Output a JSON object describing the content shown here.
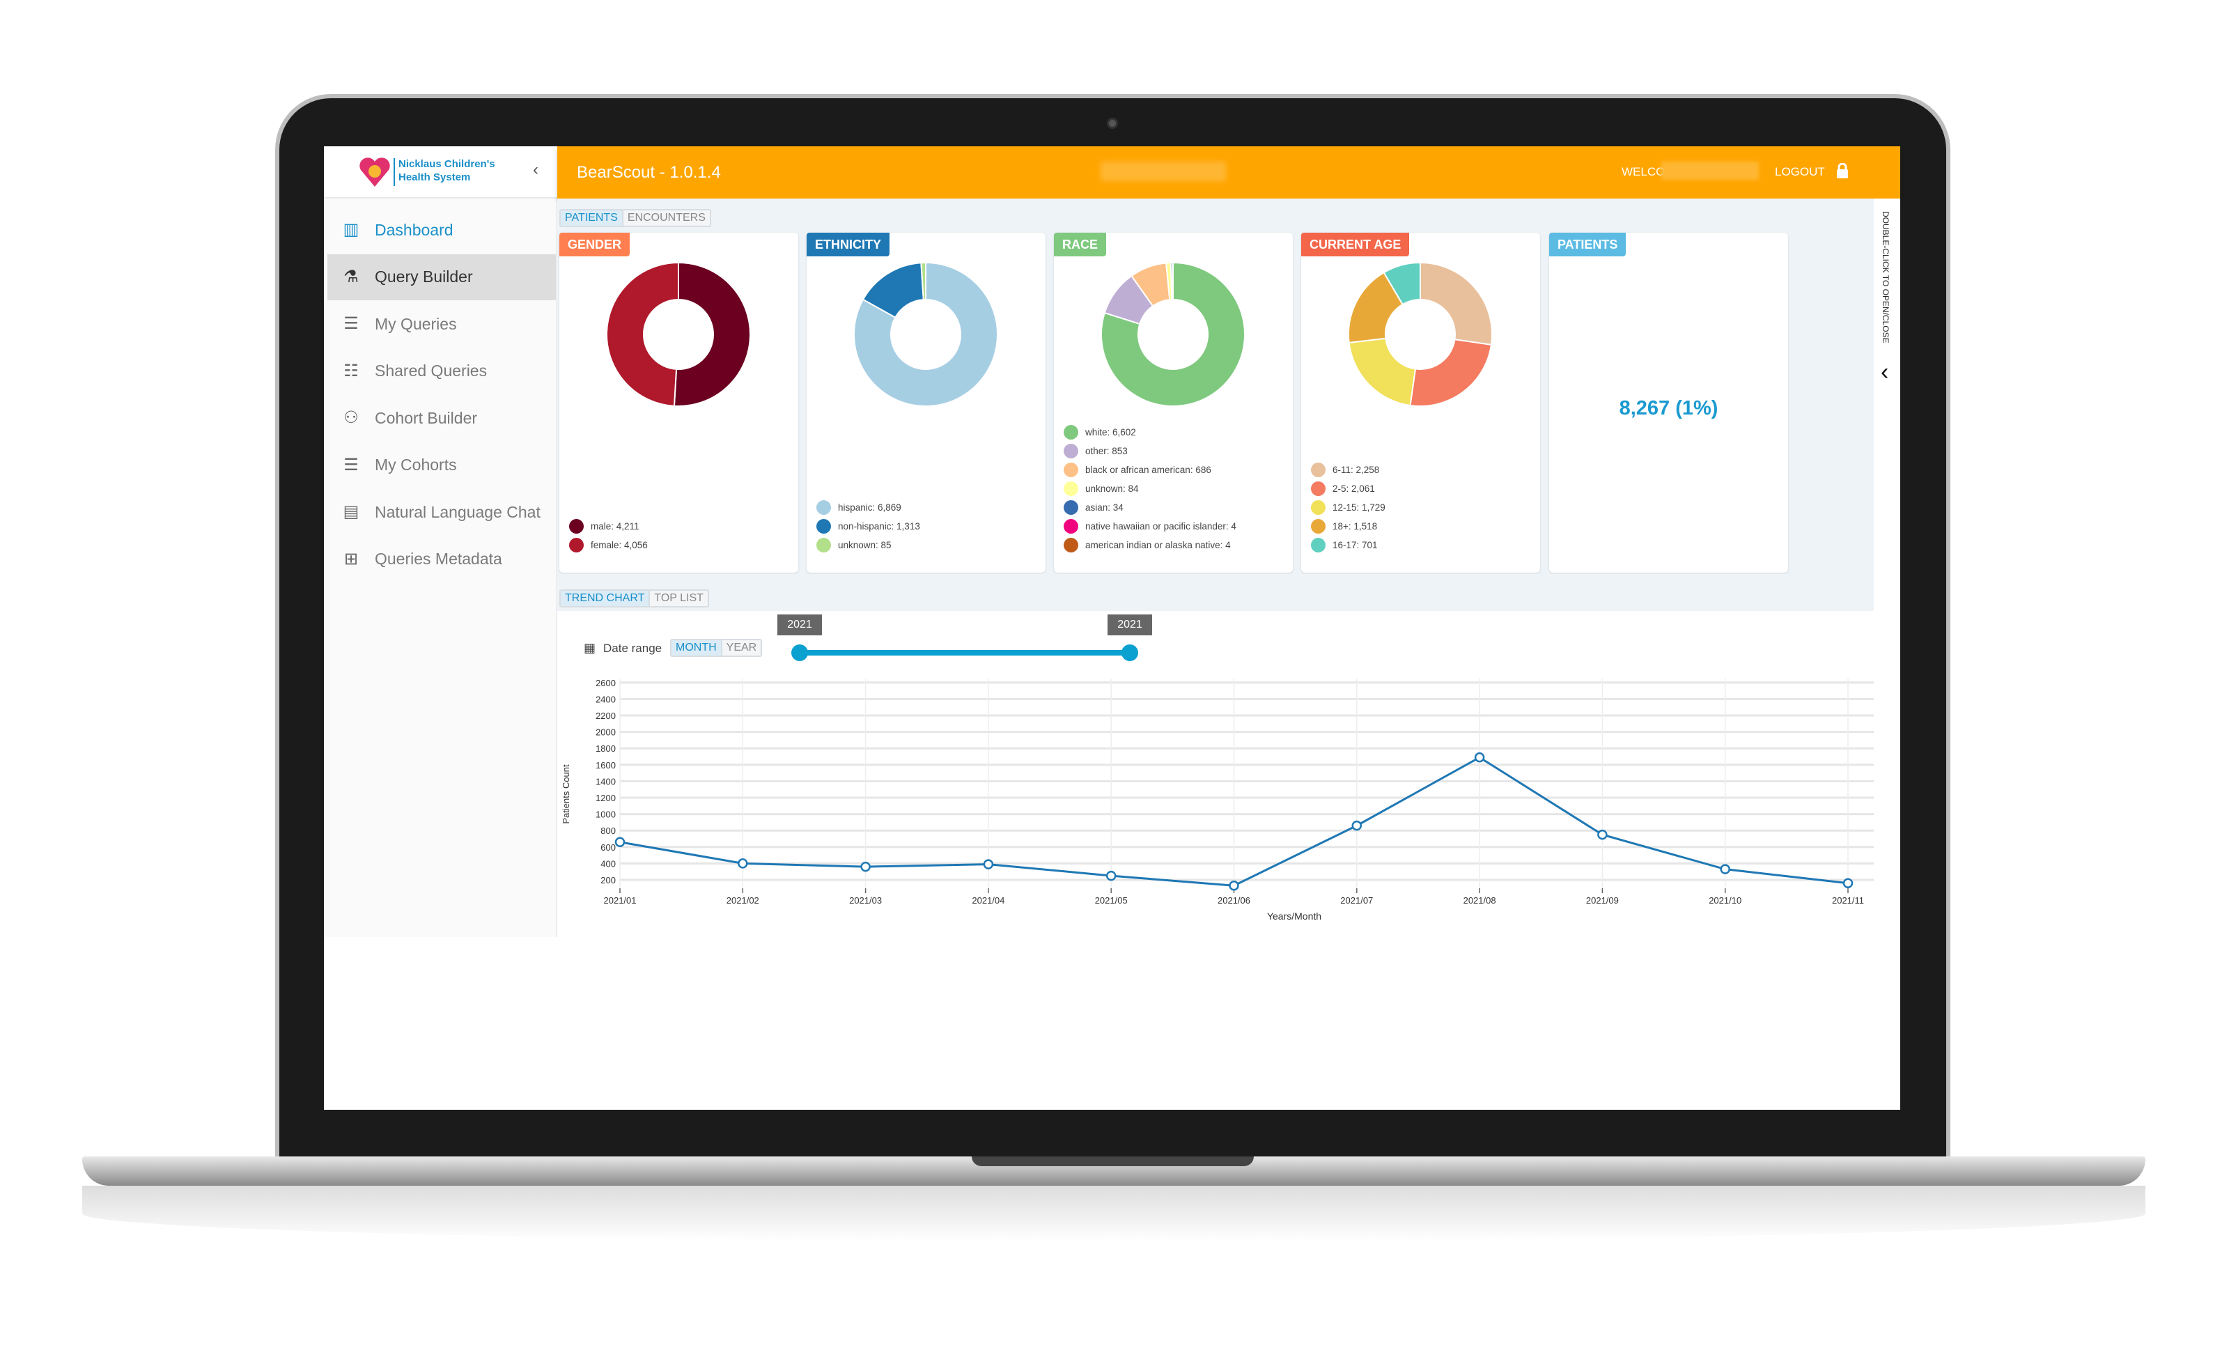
{
  "app": {
    "title": "BearScout - 1.0.1.4",
    "welcome": "WELCOME",
    "logout": "LOGOUT",
    "brand_line1": "Nicklaus Children's",
    "brand_line2": "Health System",
    "side_hint": "DOUBLE-CLICK TO OPEN/CLOSE"
  },
  "sidebar": {
    "items": [
      {
        "label": "Dashboard",
        "icon": "bar-chart-icon",
        "glyph": "▥"
      },
      {
        "label": "Query Builder",
        "icon": "flask-icon",
        "glyph": "⚗"
      },
      {
        "label": "My Queries",
        "icon": "query-list-icon",
        "glyph": "☰"
      },
      {
        "label": "Shared Queries",
        "icon": "shared-query-icon",
        "glyph": "☷"
      },
      {
        "label": "Cohort Builder",
        "icon": "group-icon",
        "glyph": "⚇"
      },
      {
        "label": "My Cohorts",
        "icon": "cohort-list-icon",
        "glyph": "☰"
      },
      {
        "label": "Natural Language Chat",
        "icon": "chat-icon",
        "glyph": "▤"
      },
      {
        "label": "Queries Metadata",
        "icon": "hierarchy-icon",
        "glyph": "⊞"
      }
    ]
  },
  "tabs": {
    "top": [
      "PATIENTS",
      "ENCOUNTERS"
    ],
    "trend": [
      "TREND CHART",
      "TOP LIST"
    ],
    "range": [
      "MONTH",
      "YEAR"
    ],
    "date_range": "Date range",
    "slider_from": "2021",
    "slider_to": "2021"
  },
  "cards": [
    {
      "title": "GENDER",
      "color": "#ff7f50",
      "slices": [
        {
          "label": "male: 4,211",
          "value": 4211,
          "color": "#6b0020"
        },
        {
          "label": "female: 4,056",
          "value": 4056,
          "color": "#b0182b"
        }
      ]
    },
    {
      "title": "ETHNICITY",
      "color": "#1f78b4",
      "slices": [
        {
          "label": "hispanic: 6,869",
          "value": 6869,
          "color": "#a6cee3"
        },
        {
          "label": "non-hispanic: 1,313",
          "value": 1313,
          "color": "#1f78b4"
        },
        {
          "label": "unknown: 85",
          "value": 85,
          "color": "#b2df8a"
        }
      ]
    },
    {
      "title": "RACE",
      "color": "#7fc97f",
      "slices": [
        {
          "label": "white: 6,602",
          "value": 6602,
          "color": "#7fc97f"
        },
        {
          "label": "other: 853",
          "value": 853,
          "color": "#beaed4"
        },
        {
          "label": "black or african american: 686",
          "value": 686,
          "color": "#fdc086"
        },
        {
          "label": "unknown: 84",
          "value": 84,
          "color": "#ffff99"
        },
        {
          "label": "asian: 34",
          "value": 34,
          "color": "#386cb0"
        },
        {
          "label": "native hawaiian or pacific islander: 4",
          "value": 4,
          "color": "#f0027f"
        },
        {
          "label": "american indian or alaska native: 4",
          "value": 4,
          "color": "#bf5b17"
        }
      ]
    },
    {
      "title": "CURRENT AGE",
      "color": "#f4664a",
      "slices": [
        {
          "label": "6-11: 2,258",
          "value": 2258,
          "color": "#e8c09b"
        },
        {
          "label": "2-5: 2,061",
          "value": 2061,
          "color": "#f47a60"
        },
        {
          "label": "12-15: 1,729",
          "value": 1729,
          "color": "#f0e05a"
        },
        {
          "label": "18+: 1,518",
          "value": 1518,
          "color": "#e8a838"
        },
        {
          "label": "16-17: 701",
          "value": 701,
          "color": "#5fcfbf"
        }
      ]
    }
  ],
  "patients": {
    "title": "PATIENTS",
    "color": "#5bbbe3",
    "value": "8,267 (1%)"
  },
  "chart_data": {
    "type": "line",
    "xlabel": "Years/Month",
    "ylabel": "Patients Count",
    "ylim": [
      100,
      2600
    ],
    "yticks": [
      200,
      400,
      600,
      800,
      1000,
      1200,
      1400,
      1600,
      1800,
      2000,
      2200,
      2400,
      2600
    ],
    "grid": true,
    "x": [
      "2021/01",
      "2021/02",
      "2021/03",
      "2021/04",
      "2021/05",
      "2021/06",
      "2021/07",
      "2021/08",
      "2021/09",
      "2021/10",
      "2021/11"
    ],
    "values": [
      660,
      400,
      360,
      390,
      250,
      130,
      860,
      1690,
      750,
      330,
      160
    ],
    "color": "#1f78b4"
  }
}
